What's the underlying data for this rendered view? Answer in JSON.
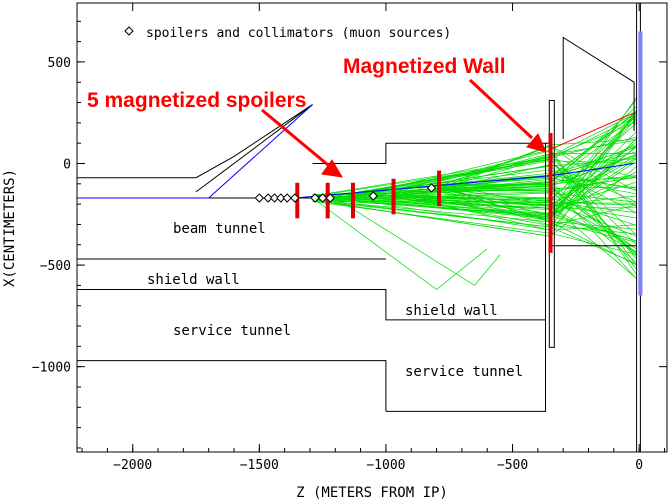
{
  "chart_data": {
    "type": "scatter",
    "xlabel": "Z (METERS FROM IP)",
    "ylabel": "X(CENTIMETERS)",
    "xlim": [
      -2220,
      110
    ],
    "ylim": [
      -1420,
      790
    ],
    "xticks": [
      -2000,
      -1500,
      -1000,
      -500,
      0
    ],
    "xtick_labels": [
      "−2000",
      "−1500",
      "−1000",
      "−500",
      "0"
    ],
    "yticks": [
      500,
      0,
      -500,
      -1000
    ],
    "ytick_labels": [
      "500",
      "0",
      "−500",
      "−1000"
    ],
    "legend": {
      "marker": "diamond",
      "label": "spoilers and collimators (muon sources)",
      "placement": "top-left"
    },
    "muon_sources": {
      "z": [
        -1500,
        -1465,
        -1440,
        -1415,
        -1390,
        -1360,
        -1280,
        -1250,
        -1220,
        -1050,
        -820
      ],
      "x": [
        -170,
        -170,
        -170,
        -170,
        -170,
        -170,
        -170,
        -170,
        -170,
        -160,
        -120
      ]
    },
    "spoilers": [
      {
        "z": -1350,
        "x_min": -270,
        "x_max": -95
      },
      {
        "z": -1230,
        "x_min": -270,
        "x_max": -95
      },
      {
        "z": -1130,
        "x_min": -270,
        "x_max": -95
      },
      {
        "z": -970,
        "x_min": -250,
        "x_max": -75
      },
      {
        "z": -790,
        "x_min": -210,
        "x_max": -35
      }
    ],
    "magnetized_wall": {
      "z": -350,
      "x_min": -440,
      "x_max": 150
    },
    "outlines": [
      {
        "name": "upper-left-boundary",
        "z": [
          -2220,
          -1750,
          -1600,
          -1290,
          -1290
        ],
        "x": [
          -70,
          -70,
          35,
          290,
          290
        ]
      },
      {
        "name": "upper-left-inner",
        "z": [
          -1750,
          -1290
        ],
        "x": [
          -140,
          290
        ]
      },
      {
        "name": "beam-line-lower",
        "z": [
          -2220,
          -1700,
          -1290
        ],
        "x": [
          -170,
          -170,
          -170
        ]
      },
      {
        "name": "beam-tunnel-top",
        "z": [
          -1290,
          -1000,
          -1000,
          -355,
          -355
        ],
        "x": [
          0,
          0,
          100,
          100,
          100
        ]
      },
      {
        "name": "shield-wall-top",
        "z": [
          -2220,
          -1000,
          -1000
        ],
        "x": [
          -470,
          -470,
          -470
        ]
      },
      {
        "name": "shield-wall-bottom",
        "z": [
          -2220,
          -1000,
          -1000,
          -370,
          -370
        ],
        "x": [
          -620,
          -620,
          -770,
          -770,
          -620
        ]
      },
      {
        "name": "service-tunnel-top",
        "z": [
          -2220,
          -1000,
          -1000
        ],
        "x": [
          -970,
          -970,
          -1220
        ]
      },
      {
        "name": "service-tunnel-bottom",
        "z": [
          -1000,
          -370,
          -370
        ],
        "x": [
          -1220,
          -1220,
          -410
        ]
      },
      {
        "name": "gap-vertical",
        "z": [
          -370,
          -370
        ],
        "x": [
          -410,
          100
        ]
      },
      {
        "name": "wall-slab",
        "z": [
          -355,
          -355,
          -335,
          -335,
          -355
        ],
        "x": [
          310,
          -905,
          -905,
          310,
          310
        ]
      },
      {
        "name": "right-top-boundary",
        "z": [
          -300,
          -300,
          -20,
          -20
        ],
        "x": [
          120,
          620,
          400,
          160
        ]
      },
      {
        "name": "right-lower-boundary",
        "z": [
          -355,
          -10
        ],
        "x": [
          -405,
          -405
        ]
      },
      {
        "name": "ip-vertical-1",
        "z": [
          -10,
          -10
        ],
        "x": [
          790,
          -1420
        ]
      },
      {
        "name": "ip-vertical-2",
        "z": [
          5,
          5
        ],
        "x": [
          790,
          -1420
        ]
      }
    ],
    "blue_lines": [
      {
        "z": [
          -2220,
          -1700,
          -1290
        ],
        "x": [
          -170,
          -170,
          290
        ]
      },
      {
        "z": [
          -1360,
          -350,
          -20
        ],
        "x": [
          -170,
          -60,
          0
        ]
      }
    ],
    "red_line": {
      "z": [
        -350,
        -20
      ],
      "x": [
        70,
        250
      ]
    },
    "detector_bar": {
      "z": 5,
      "x_min": -650,
      "x_max": 650,
      "color": "#8080ff"
    },
    "annotations": [
      {
        "text": "5 magnetized spoilers",
        "color": "#ff0000"
      },
      {
        "text": "Magnetized Wall",
        "color": "#ff0000"
      }
    ],
    "region_labels": [
      "beam tunnel",
      "shield wall",
      "service tunnel",
      "shield wall",
      "service tunnel"
    ],
    "colors": {
      "tracks": "#00dd00",
      "spoilers": "#dd0000",
      "outline": "#000000",
      "blue": "#0000ff",
      "annotation": "#ff0000"
    }
  }
}
